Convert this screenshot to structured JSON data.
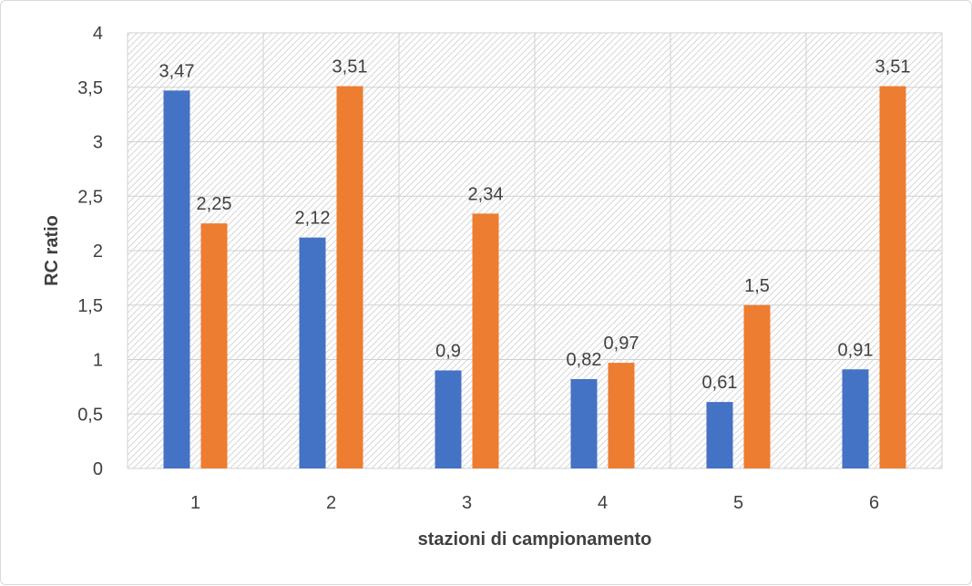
{
  "chart_data": {
    "type": "bar",
    "categories": [
      "1",
      "2",
      "3",
      "4",
      "5",
      "6"
    ],
    "series": [
      {
        "values": [
          3.47,
          2.12,
          0.9,
          0.82,
          0.61,
          0.91
        ],
        "color": "#4472C4",
        "labels": [
          "3,47",
          "2,12",
          "0,9",
          "0,82",
          "0,61",
          "0,91"
        ]
      },
      {
        "values": [
          2.25,
          3.51,
          2.34,
          0.97,
          1.5,
          3.51
        ],
        "color": "#ED7D31",
        "labels": [
          "2,25",
          "3,51",
          "2,34",
          "0,97",
          "1,5",
          "3,51"
        ]
      }
    ],
    "xlabel": "stazioni di campionamento",
    "ylabel": "RC ratio",
    "ylim": [
      0,
      4
    ],
    "yticks": [
      0,
      0.5,
      1,
      1.5,
      2,
      2.5,
      3,
      3.5,
      4
    ],
    "ytick_labels": [
      "0",
      "0,5",
      "1",
      "1,5",
      "2",
      "2,5",
      "3",
      "3,5",
      "4"
    ],
    "grid": true,
    "plot_background": "hatched"
  }
}
